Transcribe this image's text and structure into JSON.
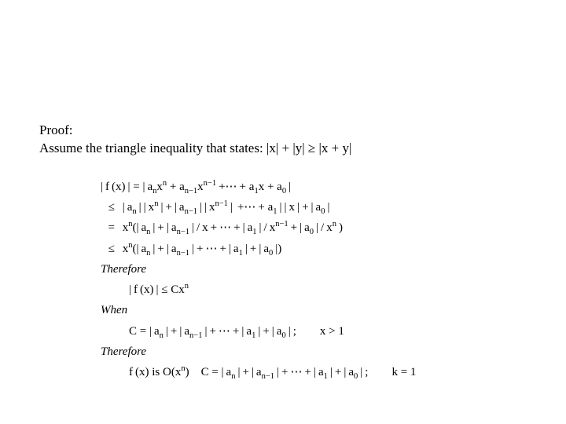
{
  "text_color": "#000000",
  "background_color": "#ffffff",
  "header": {
    "line1": "Proof:",
    "line2_prefix": "Assume  the triangle inequality that states: |x| + |y| ",
    "geq": "≥",
    "line2_suffix": " |x + y|"
  },
  "proof": {
    "line1_lhs": "| f (x) | = | a",
    "n": "n",
    "x": "x",
    "plus_a": " + a",
    "nm1": "n−1",
    "dots_plus": " +⋯ + a",
    "one": "1",
    "zero": "0",
    "close_bar": " |",
    "leq": "≤",
    "eq": "=",
    "line2_a": "| a",
    "pipe_x_pipe": " | | x",
    "line3_pre": "x",
    "line3_open": "(| a",
    "slash_x": " / x",
    "close_paren": " )",
    "line4_open": "x",
    "line5": "Therefore",
    "line6_lhs": "| f (x) | ≤ Cx",
    "line7": "When",
    "line8_lhs": "C = | a",
    "semicolon": " ;",
    "xgt1": "x > 1",
    "line9": "Therefore",
    "line10_a": "f (x) is O(x",
    "line10_b": ") C = | a",
    "k1": "k = 1"
  }
}
